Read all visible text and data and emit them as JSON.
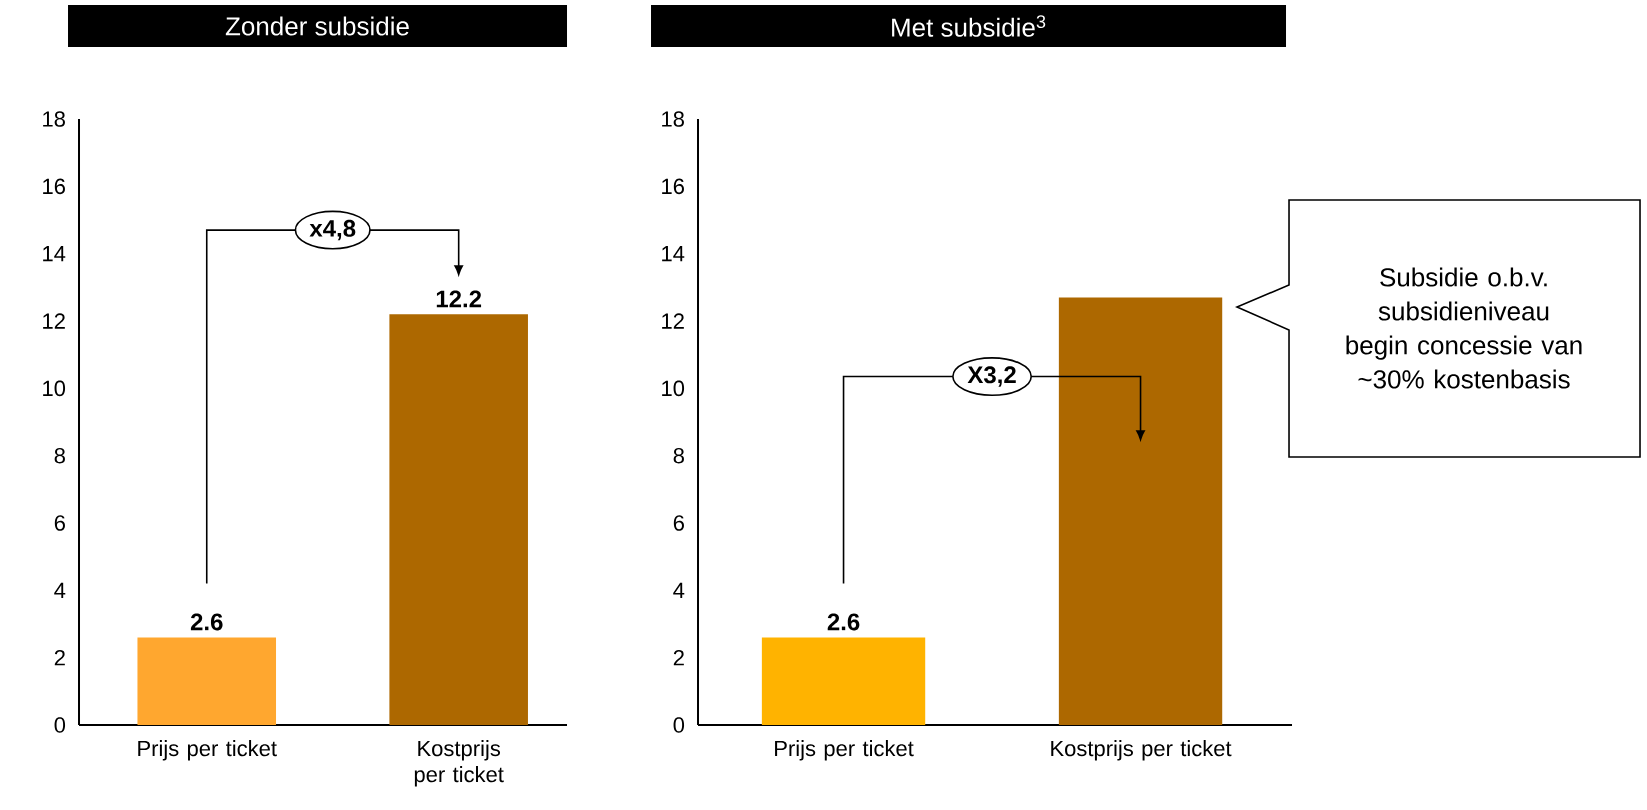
{
  "chart_data": [
    {
      "type": "bar",
      "title": "Zonder subsidie",
      "categories": [
        "Prijs per ticket",
        "Kostprijs per ticket"
      ],
      "values": [
        2.6,
        12.2
      ],
      "colors": [
        "#ffa72f",
        "#ad6800"
      ],
      "value_labels": [
        "2.6",
        "12.2"
      ],
      "ylim": [
        0,
        18
      ],
      "yticks": [
        0,
        2,
        4,
        6,
        8,
        10,
        12,
        14,
        16,
        18
      ],
      "grid": false,
      "annotations": [
        "x4,8"
      ]
    },
    {
      "type": "bar",
      "title": "Met subsidie$^{3}$",
      "categories": [
        "Prijs per ticket",
        "Kostprijs per ticket"
      ],
      "stacked": true,
      "series": [
        {
          "colors": [
            "#ffb300",
            "#ad6800"
          ],
          "values": [
            2.6,
            8.2
          ],
          "value_labels": [
            "2.6",
            null
          ]
        },
        {
          "color": "#ad6800",
          "values": [
            null,
            4.5
          ]
        }
      ],
      "ylim": [
        0,
        18
      ],
      "yticks": [
        0,
        2,
        4,
        6,
        8,
        10,
        12,
        14,
        16,
        18
      ],
      "grid": false,
      "annotations": [
        "X3,2",
        "Subsidie o.b.v. subsidieniveau begin concessie van ~30% kostenbasis"
      ]
    }
  ]
}
